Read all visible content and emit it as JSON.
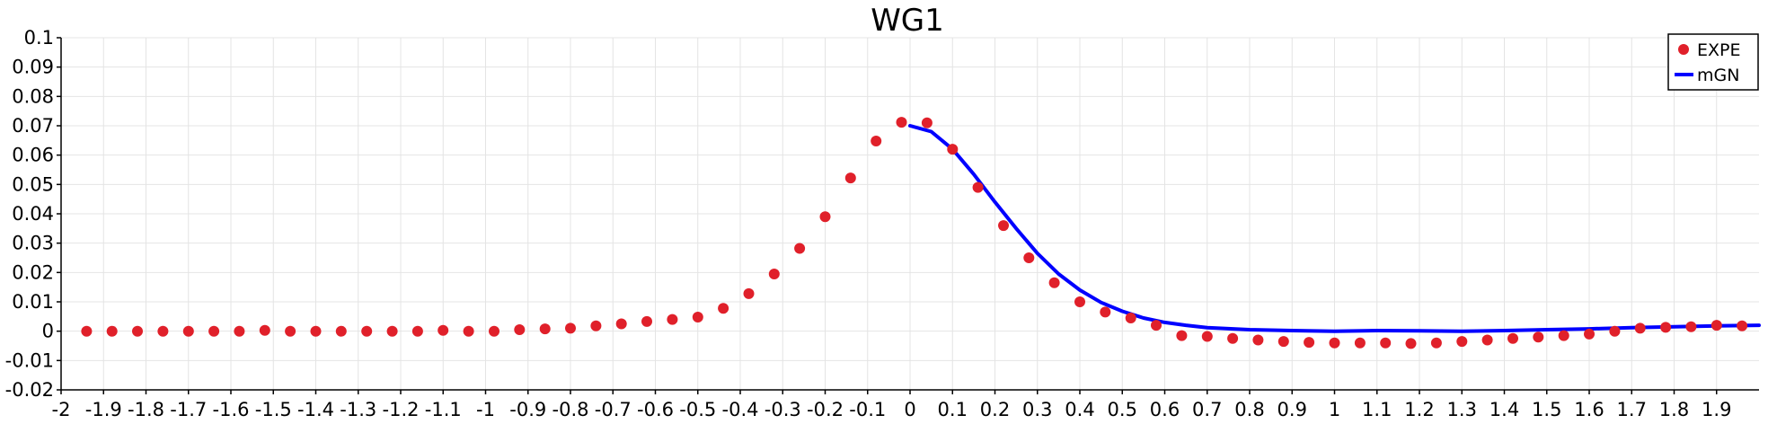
{
  "chart_data": {
    "type": "scatter+line",
    "title": "WG1",
    "xlabel": "",
    "ylabel": "",
    "xlim": [
      -2,
      2
    ],
    "ylim": [
      -0.02,
      0.1
    ],
    "grid": true,
    "legend_position": "top-right",
    "x_ticks": [
      "-2",
      "-1.9",
      "-1.8",
      "-1.7",
      "-1.6",
      "-1.5",
      "-1.4",
      "-1.3",
      "-1.2",
      "-1.1",
      "-1",
      "-0.9",
      "-0.8",
      "-0.7",
      "-0.6",
      "-0.5",
      "-0.4",
      "-0.3",
      "-0.2",
      "-0.1",
      "0",
      "0.1",
      "0.2",
      "0.3",
      "0.4",
      "0.5",
      "0.6",
      "0.7",
      "0.8",
      "0.9",
      "1",
      "1.1",
      "1.2",
      "1.3",
      "1.4",
      "1.5",
      "1.6",
      "1.7",
      "1.8",
      "1.9"
    ],
    "y_ticks": [
      "-0.02",
      "-0.01",
      "0",
      "0.01",
      "0.02",
      "0.03",
      "0.04",
      "0.05",
      "0.06",
      "0.07",
      "0.08",
      "0.09",
      "0.1"
    ],
    "series": [
      {
        "name": "EXPE",
        "kind": "scatter",
        "color": "#e0202a",
        "x": [
          -1.94,
          -1.88,
          -1.82,
          -1.76,
          -1.7,
          -1.64,
          -1.58,
          -1.52,
          -1.46,
          -1.4,
          -1.34,
          -1.28,
          -1.22,
          -1.16,
          -1.1,
          -1.04,
          -0.98,
          -0.92,
          -0.86,
          -0.8,
          -0.74,
          -0.68,
          -0.62,
          -0.56,
          -0.5,
          -0.44,
          -0.38,
          -0.32,
          -0.26,
          -0.2,
          -0.14,
          -0.08,
          -0.02,
          0.04,
          0.1,
          0.16,
          0.22,
          0.28,
          0.34,
          0.4,
          0.46,
          0.52,
          0.58,
          0.64,
          0.7,
          0.76,
          0.82,
          0.88,
          0.94,
          1.0,
          1.06,
          1.12,
          1.18,
          1.24,
          1.3,
          1.36,
          1.42,
          1.48,
          1.54,
          1.6,
          1.66,
          1.72,
          1.78,
          1.84,
          1.9,
          1.96
        ],
        "y": [
          0.0,
          0.0,
          0.0,
          0.0,
          0.0,
          0.0,
          0.0,
          0.0003,
          0.0,
          0.0,
          0.0,
          0.0,
          0.0,
          0.0,
          0.0003,
          0.0,
          0.0,
          0.0005,
          0.0008,
          0.001,
          0.0018,
          0.0025,
          0.0033,
          0.004,
          0.0048,
          0.0078,
          0.0128,
          0.0195,
          0.0282,
          0.039,
          0.0522,
          0.0648,
          0.0712,
          0.071,
          0.062,
          0.049,
          0.036,
          0.025,
          0.0165,
          0.01,
          0.0065,
          0.0045,
          0.002,
          -0.0015,
          -0.0018,
          -0.0025,
          -0.003,
          -0.0035,
          -0.0038,
          -0.004,
          -0.004,
          -0.004,
          -0.0042,
          -0.004,
          -0.0035,
          -0.003,
          -0.0025,
          -0.002,
          -0.0015,
          -0.001,
          0.0,
          0.001,
          0.0013,
          0.0015,
          0.002,
          0.0018
        ]
      },
      {
        "name": "mGN",
        "kind": "line",
        "color": "#0000ff",
        "x": [
          0.0,
          0.05,
          0.1,
          0.15,
          0.2,
          0.25,
          0.3,
          0.35,
          0.4,
          0.45,
          0.5,
          0.55,
          0.6,
          0.65,
          0.7,
          0.8,
          0.9,
          1.0,
          1.1,
          1.2,
          1.3,
          1.4,
          1.5,
          1.6,
          1.7,
          1.8,
          1.9,
          2.0
        ],
        "y": [
          0.07,
          0.068,
          0.062,
          0.0535,
          0.044,
          0.035,
          0.0265,
          0.0195,
          0.014,
          0.0098,
          0.0068,
          0.0045,
          0.003,
          0.002,
          0.0012,
          0.0005,
          0.0002,
          0.0,
          0.0002,
          0.0001,
          0.0,
          0.0002,
          0.0005,
          0.0008,
          0.0012,
          0.0015,
          0.0018,
          0.002
        ]
      }
    ]
  }
}
